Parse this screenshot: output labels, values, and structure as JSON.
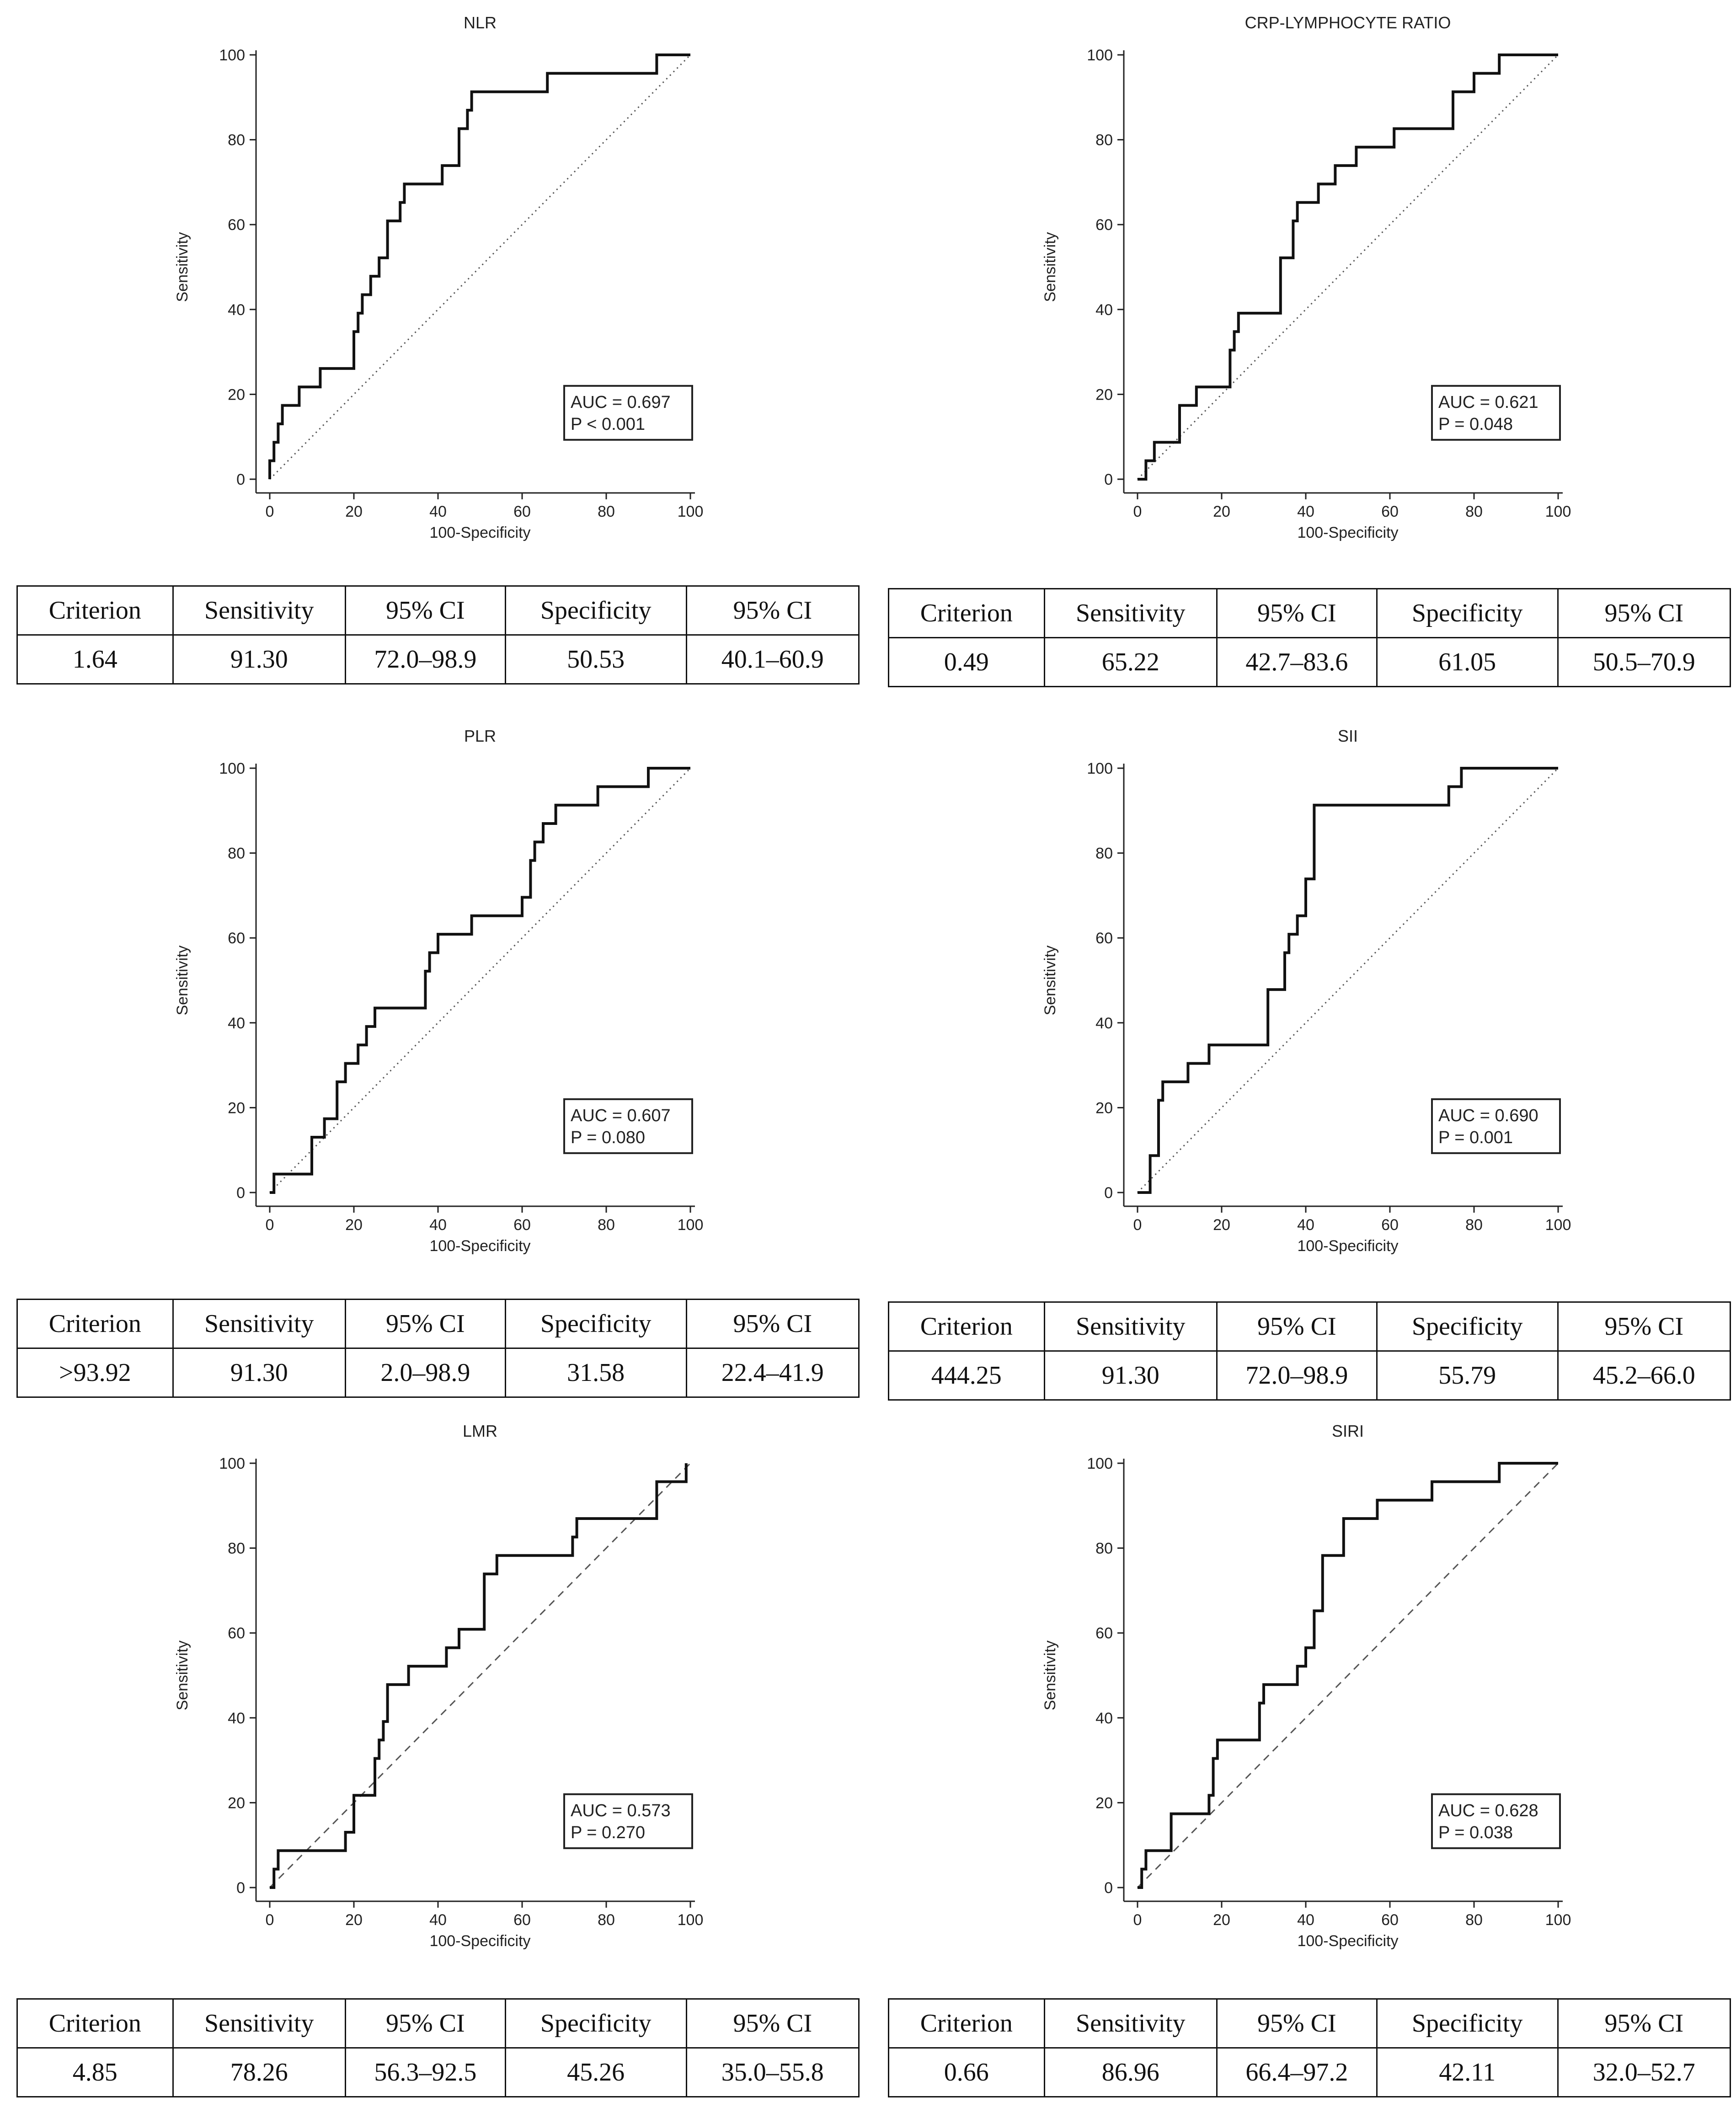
{
  "chart_data": [
    {
      "type": "line",
      "title": "NLR",
      "xlabel": "100-Specificity",
      "ylabel": "Sensitivity",
      "xlim": [
        0,
        100
      ],
      "ylim": [
        0,
        100
      ],
      "xticks": [
        "0",
        "20",
        "40",
        "60",
        "80",
        "100"
      ],
      "yticks": [
        "0",
        "20",
        "40",
        "60",
        "80",
        "100"
      ],
      "diagonal": "dotted",
      "auc_label": "AUC = 0.697",
      "p_label": "P < 0.001",
      "roc": {
        "x": [
          0,
          0,
          1,
          1,
          2,
          2,
          3,
          3,
          7,
          7,
          12,
          12,
          20,
          20,
          21,
          21,
          22,
          22,
          24,
          24,
          26,
          26,
          28,
          28,
          31,
          31,
          32,
          32,
          41,
          41,
          45,
          45,
          47,
          47,
          48,
          48,
          49,
          49,
          66,
          66,
          92,
          92,
          100
        ],
        "y": [
          0,
          4.35,
          4.35,
          8.7,
          8.7,
          13.04,
          13.04,
          17.39,
          17.39,
          21.74,
          21.74,
          26.09,
          26.09,
          34.78,
          34.78,
          39.13,
          39.13,
          43.48,
          43.48,
          47.83,
          47.83,
          52.17,
          52.17,
          60.87,
          60.87,
          65.22,
          65.22,
          69.57,
          69.57,
          73.91,
          73.91,
          82.61,
          82.61,
          86.96,
          86.96,
          91.3,
          91.3,
          91.3,
          91.3,
          95.65,
          95.65,
          100,
          100
        ]
      },
      "table": {
        "headers": [
          "Criterion",
          "Sensitivity",
          "95% CI",
          "Specificity",
          "95% CI"
        ],
        "values": [
          "1.64",
          "91.30",
          "72.0–98.9",
          "50.53",
          "40.1–60.9"
        ]
      }
    },
    {
      "type": "line",
      "title": "CRP-LYMPHOCYTE RATIO",
      "xlabel": "100-Specificity",
      "ylabel": "Sensitivity",
      "xlim": [
        0,
        100
      ],
      "ylim": [
        0,
        100
      ],
      "xticks": [
        "0",
        "20",
        "40",
        "60",
        "80",
        "100"
      ],
      "yticks": [
        "0",
        "20",
        "40",
        "60",
        "80",
        "100"
      ],
      "diagonal": "dotted",
      "auc_label": "AUC = 0.621",
      "p_label": "P = 0.048",
      "roc": {
        "x": [
          0,
          2,
          2,
          4,
          4,
          10,
          10,
          14,
          14,
          22,
          22,
          23,
          23,
          24,
          24,
          34,
          34,
          37,
          37,
          38,
          38,
          43,
          43,
          47,
          47,
          52,
          52,
          61,
          61,
          75,
          75,
          80,
          80,
          86,
          86,
          100
        ],
        "y": [
          0,
          0,
          4.35,
          4.35,
          8.7,
          8.7,
          17.39,
          17.39,
          21.74,
          21.74,
          30.43,
          30.43,
          34.78,
          34.78,
          39.13,
          39.13,
          52.17,
          52.17,
          60.87,
          60.87,
          65.22,
          65.22,
          69.57,
          69.57,
          73.91,
          73.91,
          78.26,
          78.26,
          82.61,
          82.61,
          91.3,
          91.3,
          95.65,
          95.65,
          100,
          100
        ]
      },
      "table": {
        "headers": [
          "Criterion",
          "Sensitivity",
          "95% CI",
          "Specificity",
          "95% CI"
        ],
        "values": [
          "0.49",
          "65.22",
          "42.7–83.6",
          "61.05",
          "50.5–70.9"
        ]
      }
    },
    {
      "type": "line",
      "title": "PLR",
      "xlabel": "100-Specificity",
      "ylabel": "Sensitivity",
      "xlim": [
        0,
        100
      ],
      "ylim": [
        0,
        100
      ],
      "xticks": [
        "0",
        "20",
        "40",
        "60",
        "80",
        "100"
      ],
      "yticks": [
        "0",
        "20",
        "40",
        "60",
        "80",
        "100"
      ],
      "diagonal": "dotted",
      "auc_label": "AUC = 0.607",
      "p_label": "P = 0.080",
      "roc": {
        "x": [
          0,
          1,
          1,
          10,
          10,
          13,
          13,
          16,
          16,
          18,
          18,
          21,
          21,
          23,
          23,
          25,
          25,
          37,
          37,
          38,
          38,
          40,
          40,
          48,
          48,
          60,
          60,
          62,
          62,
          63,
          63,
          65,
          65,
          68,
          68,
          78,
          78,
          90,
          90,
          100
        ],
        "y": [
          0,
          0,
          4.35,
          4.35,
          13.04,
          13.04,
          17.39,
          17.39,
          26.09,
          26.09,
          30.43,
          30.43,
          34.78,
          34.78,
          39.13,
          39.13,
          43.48,
          43.48,
          52.17,
          52.17,
          56.52,
          56.52,
          60.87,
          60.87,
          65.22,
          65.22,
          69.57,
          69.57,
          78.26,
          78.26,
          82.61,
          82.61,
          86.96,
          86.96,
          91.3,
          91.3,
          95.65,
          95.65,
          100,
          100
        ]
      },
      "table": {
        "headers": [
          "Criterion",
          "Sensitivity",
          "95% CI",
          "Specificity",
          "95% CI"
        ],
        "values": [
          ">93.92",
          "91.30",
          "2.0–98.9",
          "31.58",
          "22.4–41.9"
        ]
      }
    },
    {
      "type": "line",
      "title": "SII",
      "xlabel": "100-Specificity",
      "ylabel": "Sensitivity",
      "xlim": [
        0,
        100
      ],
      "ylim": [
        0,
        100
      ],
      "xticks": [
        "0",
        "20",
        "40",
        "60",
        "80",
        "100"
      ],
      "yticks": [
        "0",
        "20",
        "40",
        "60",
        "80",
        "100"
      ],
      "diagonal": "dotted",
      "auc_label": "AUC = 0.690",
      "p_label": "P = 0.001",
      "roc": {
        "x": [
          0,
          3,
          3,
          5,
          5,
          6,
          6,
          12,
          12,
          17,
          17,
          31,
          31,
          35,
          35,
          36,
          36,
          38,
          38,
          40,
          40,
          42,
          42,
          44,
          44,
          74,
          74,
          77,
          77,
          100
        ],
        "y": [
          0,
          0,
          8.7,
          8.7,
          21.74,
          21.74,
          26.09,
          26.09,
          30.43,
          30.43,
          34.78,
          34.78,
          47.83,
          47.83,
          56.52,
          56.52,
          60.87,
          60.87,
          65.22,
          65.22,
          73.91,
          73.91,
          91.3,
          91.3,
          91.3,
          91.3,
          95.65,
          95.65,
          100,
          100
        ]
      },
      "table": {
        "headers": [
          "Criterion",
          "Sensitivity",
          "95% CI",
          "Specificity",
          "95% CI"
        ],
        "values": [
          "444.25",
          "91.30",
          "72.0–98.9",
          "55.79",
          "45.2–66.0"
        ]
      }
    },
    {
      "type": "line",
      "title": "LMR",
      "xlabel": "100-Specificity",
      "ylabel": "Sensitivity",
      "xlim": [
        0,
        100
      ],
      "ylim": [
        0,
        100
      ],
      "xticks": [
        "0",
        "20",
        "40",
        "60",
        "80",
        "100"
      ],
      "yticks": [
        "0",
        "20",
        "40",
        "60",
        "80",
        "100"
      ],
      "diagonal": "dashed",
      "auc_label": "AUC = 0.573",
      "p_label": "P = 0.270",
      "roc": {
        "x": [
          0,
          1,
          1,
          2,
          2,
          18,
          18,
          20,
          20,
          25,
          25,
          26,
          26,
          27,
          27,
          28,
          28,
          33,
          33,
          42,
          42,
          45,
          45,
          51,
          51,
          54,
          54,
          72,
          72,
          73,
          73,
          92,
          92,
          99,
          99
        ],
        "y": [
          0,
          0,
          4.35,
          4.35,
          8.7,
          8.7,
          13.04,
          13.04,
          21.74,
          21.74,
          30.43,
          30.43,
          34.78,
          34.78,
          39.13,
          39.13,
          47.83,
          47.83,
          52.17,
          52.17,
          56.52,
          56.52,
          60.87,
          60.87,
          73.91,
          73.91,
          78.26,
          78.26,
          82.61,
          82.61,
          86.96,
          86.96,
          95.65,
          95.65,
          100
        ]
      },
      "table": {
        "headers": [
          "Criterion",
          "Sensitivity",
          "95% CI",
          "Specificity",
          "95% CI"
        ],
        "values": [
          "4.85",
          "78.26",
          "56.3–92.5",
          "45.26",
          "35.0–55.8"
        ]
      }
    },
    {
      "type": "line",
      "title": "SIRI",
      "xlabel": "100-Specificity",
      "ylabel": "Sensitivity",
      "xlim": [
        0,
        100
      ],
      "ylim": [
        0,
        100
      ],
      "xticks": [
        "0",
        "20",
        "40",
        "60",
        "80",
        "100"
      ],
      "yticks": [
        "0",
        "20",
        "40",
        "60",
        "80",
        "100"
      ],
      "diagonal": "dashed",
      "auc_label": "AUC = 0.628",
      "p_label": "P = 0.038",
      "roc": {
        "x": [
          0,
          1,
          1,
          2,
          2,
          8,
          8,
          17,
          17,
          18,
          18,
          19,
          19,
          29,
          29,
          30,
          30,
          38,
          38,
          40,
          40,
          42,
          42,
          44,
          44,
          49,
          49,
          57,
          57,
          70,
          70,
          86,
          86,
          94,
          94,
          100
        ],
        "y": [
          0,
          0,
          4.35,
          4.35,
          8.7,
          8.7,
          17.39,
          17.39,
          21.74,
          21.74,
          30.43,
          30.43,
          34.78,
          34.78,
          43.48,
          43.48,
          47.83,
          47.83,
          52.17,
          52.17,
          56.52,
          56.52,
          65.22,
          65.22,
          78.26,
          78.26,
          86.96,
          86.96,
          91.3,
          91.3,
          95.65,
          95.65,
          100,
          100,
          100,
          100
        ]
      },
      "table": {
        "headers": [
          "Criterion",
          "Sensitivity",
          "95% CI",
          "Specificity",
          "95% CI"
        ],
        "values": [
          "0.66",
          "86.96",
          "66.4–97.2",
          "42.11",
          "32.0–52.7"
        ]
      }
    }
  ]
}
